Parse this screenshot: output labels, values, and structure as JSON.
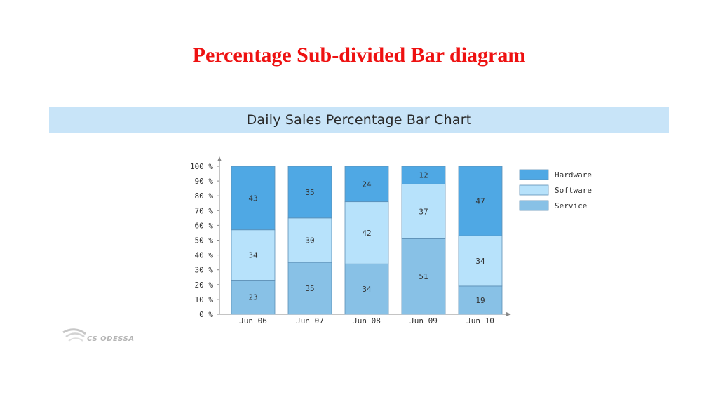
{
  "slide": {
    "title": "Percentage Sub-divided Bar diagram"
  },
  "logo": {
    "text": "CS ODESSA"
  },
  "colors": {
    "hardware": "#4fa8e4",
    "software": "#b7e2fb",
    "service": "#88c1e6",
    "title_red": "#ee1111",
    "banner": "#c8e4f8"
  },
  "chart_data": {
    "type": "bar",
    "stacked": true,
    "title": "Daily Sales Percentage Bar Chart",
    "categories": [
      "Jun 06",
      "Jun 07",
      "Jun 08",
      "Jun 09",
      "Jun 10"
    ],
    "series": [
      {
        "name": "Service",
        "values": [
          23,
          35,
          34,
          51,
          19
        ]
      },
      {
        "name": "Software",
        "values": [
          34,
          30,
          42,
          37,
          34
        ]
      },
      {
        "name": "Hardware",
        "values": [
          43,
          35,
          24,
          12,
          47
        ]
      }
    ],
    "legend_order": [
      "Hardware",
      "Software",
      "Service"
    ],
    "y_ticks": [
      "0 %",
      "10 %",
      "20 %",
      "30 %",
      "40 %",
      "50 %",
      "60 %",
      "70 %",
      "80 %",
      "90 %",
      "100 %"
    ],
    "ylim": [
      0,
      100
    ],
    "legend_position": "right",
    "grid": false
  }
}
